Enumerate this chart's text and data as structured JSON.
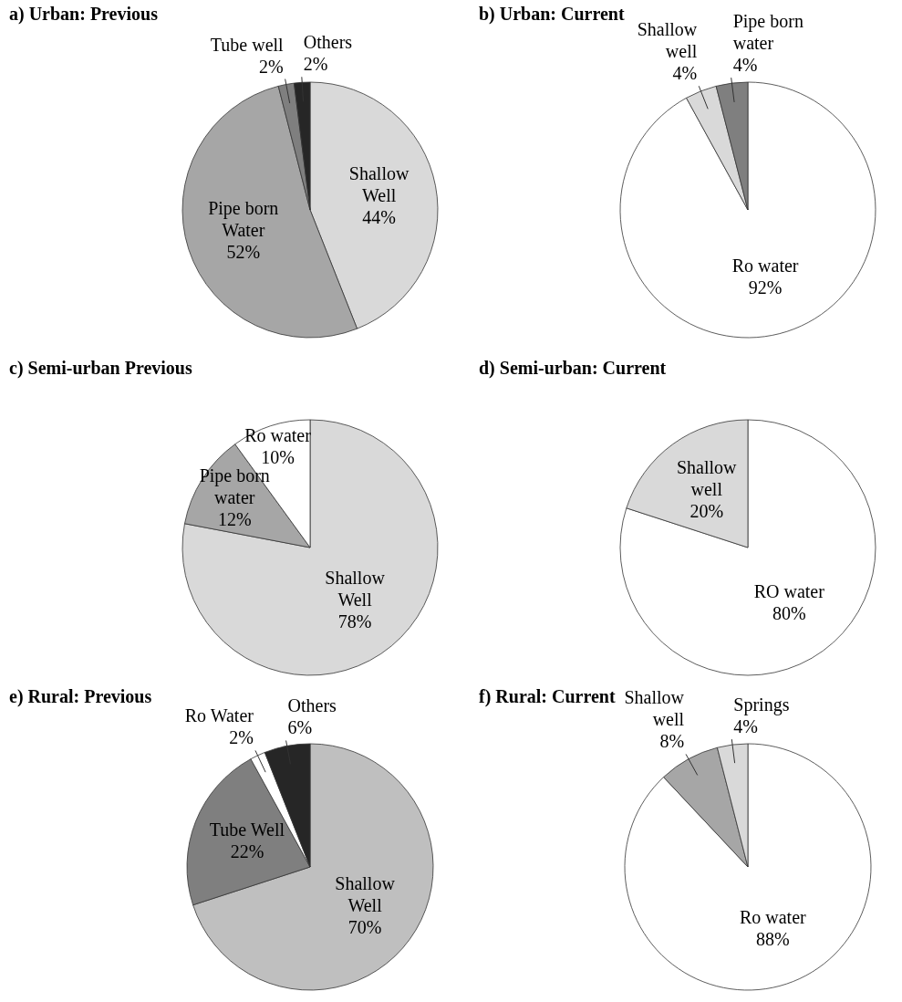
{
  "chart_data": [
    {
      "type": "pie",
      "title": "a) Urban: Previous",
      "categories": [
        "Shallow Well",
        "Pipe born Water",
        "Tube well",
        "Others"
      ],
      "values": [
        44,
        52,
        2,
        2
      ],
      "colors": [
        "#d9d9d9",
        "#a6a6a6",
        "#7f7f7f",
        "#262626"
      ],
      "value_labels": [
        "44%",
        "52%",
        "2%",
        "2%"
      ]
    },
    {
      "type": "pie",
      "title": "b) Urban: Current",
      "categories": [
        "Ro water",
        "Shallow well",
        "Pipe born water"
      ],
      "values": [
        92,
        4,
        4
      ],
      "colors": [
        "#ffffff",
        "#d9d9d9",
        "#7f7f7f"
      ],
      "value_labels": [
        "92%",
        "4%",
        "4%"
      ]
    },
    {
      "type": "pie",
      "title": "c) Semi-urban Previous",
      "categories": [
        "Shallow Well",
        "Pipe born water",
        "Ro water"
      ],
      "values": [
        78,
        12,
        10
      ],
      "colors": [
        "#d9d9d9",
        "#a6a6a6",
        "#ffffff"
      ],
      "value_labels": [
        "78%",
        "12%",
        "10%"
      ]
    },
    {
      "type": "pie",
      "title": "d) Semi-urban: Current",
      "categories": [
        "RO water",
        "Shallow well"
      ],
      "values": [
        80,
        20
      ],
      "colors": [
        "#ffffff",
        "#d9d9d9"
      ],
      "value_labels": [
        "80%",
        "20%"
      ]
    },
    {
      "type": "pie",
      "title": "e) Rural: Previous",
      "categories": [
        "Shallow Well",
        "Tube Well",
        "Ro Water",
        "Others"
      ],
      "values": [
        70,
        22,
        2,
        6
      ],
      "colors": [
        "#bfbfbf",
        "#7f7f7f",
        "#ffffff",
        "#262626"
      ],
      "value_labels": [
        "70%",
        "22%",
        "2%",
        "6%"
      ]
    },
    {
      "type": "pie",
      "title": "f) Rural: Current",
      "categories": [
        "Ro water",
        "Shallow well",
        "Springs"
      ],
      "values": [
        88,
        8,
        4
      ],
      "colors": [
        "#ffffff",
        "#a6a6a6",
        "#d9d9d9"
      ],
      "value_labels": [
        "88%",
        "8%",
        "4%"
      ]
    }
  ]
}
